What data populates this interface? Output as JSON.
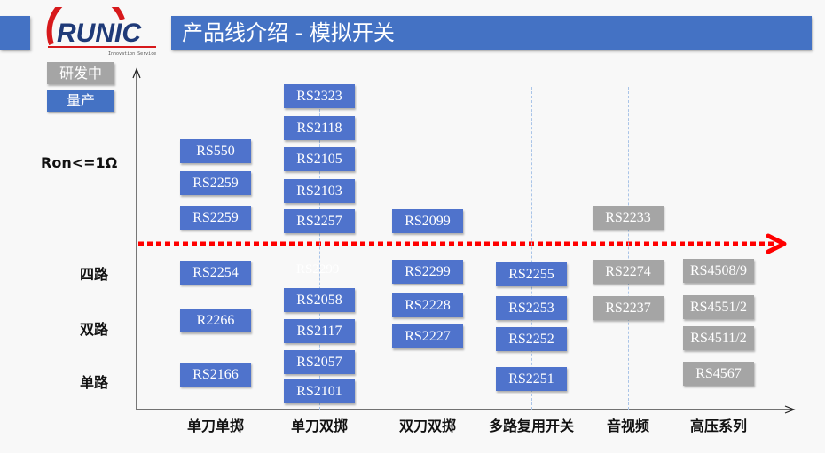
{
  "header": {
    "title": "产品线介绍 -  模拟开关"
  },
  "logo": {
    "text": "RUNIC",
    "tagline": "Innovation Service"
  },
  "legend": {
    "in_development": {
      "label": "研发中",
      "color": "#a5a5a5"
    },
    "mass_production": {
      "label": "量产",
      "color": "#4472c4"
    }
  },
  "y_labels": {
    "ron": "Ron<=1Ω",
    "quad": "四路",
    "dual": "双路",
    "single": "单路"
  },
  "columns": [
    {
      "label": "单刀单掷",
      "parts": [
        {
          "name": "RS550",
          "status": "mass_production"
        },
        {
          "name": "RS2259",
          "status": "mass_production"
        },
        {
          "name": "RS2259",
          "status": "mass_production"
        },
        {
          "name": "RS2254",
          "status": "mass_production"
        },
        {
          "name": "R2266",
          "status": "mass_production"
        },
        {
          "name": "RS2166",
          "status": "mass_production"
        }
      ]
    },
    {
      "label": "单刀双掷",
      "ghost": "RS2299",
      "parts": [
        {
          "name": "RS2323",
          "status": "mass_production"
        },
        {
          "name": "RS2118",
          "status": "mass_production"
        },
        {
          "name": "RS2105",
          "status": "mass_production"
        },
        {
          "name": "RS2103",
          "status": "mass_production"
        },
        {
          "name": "RS2257",
          "status": "mass_production"
        },
        {
          "name": "RS2058",
          "status": "mass_production"
        },
        {
          "name": "RS2117",
          "status": "mass_production"
        },
        {
          "name": "RS2057",
          "status": "mass_production"
        },
        {
          "name": "RS2101",
          "status": "mass_production"
        }
      ]
    },
    {
      "label": "双刀双掷",
      "parts": [
        {
          "name": "RS2099",
          "status": "mass_production"
        },
        {
          "name": "RS2299",
          "status": "mass_production"
        },
        {
          "name": "RS2228",
          "status": "mass_production"
        },
        {
          "name": "RS2227",
          "status": "mass_production"
        }
      ]
    },
    {
      "label": "多路复用开关",
      "parts": [
        {
          "name": "RS2255",
          "status": "mass_production"
        },
        {
          "name": "RS2253",
          "status": "mass_production"
        },
        {
          "name": "RS2252",
          "status": "mass_production"
        },
        {
          "name": "RS2251",
          "status": "mass_production"
        }
      ]
    },
    {
      "label": "音视频",
      "parts": [
        {
          "name": "RS2233",
          "status": "in_development"
        },
        {
          "name": "RS2274",
          "status": "in_development"
        },
        {
          "name": "RS2237",
          "status": "in_development"
        }
      ]
    },
    {
      "label": "高压系列",
      "parts": [
        {
          "name": "RS4508/9",
          "status": "in_development"
        },
        {
          "name": "RS4551/2",
          "status": "in_development"
        },
        {
          "name": "RS4511/2",
          "status": "in_development"
        },
        {
          "name": "RS4567",
          "status": "in_development"
        }
      ]
    }
  ],
  "colors": {
    "threshold_arrow": "#ff0000",
    "grid": "#a9c4e8"
  }
}
